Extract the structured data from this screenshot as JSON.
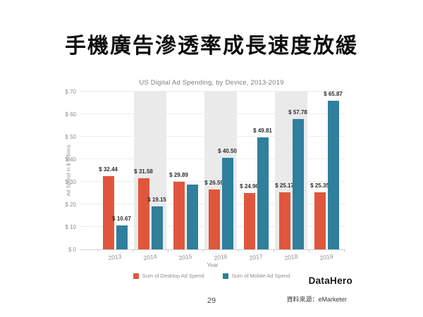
{
  "slide": {
    "title": "手機廣告滲透率成長速度放緩",
    "page_number": "29",
    "source_note": "資料來源：eMarketer",
    "logo_text": "DataHero"
  },
  "chart_data": {
    "type": "bar",
    "title": "US Digital Ad Spending, by Device, 2013-2019",
    "xlabel": "Year",
    "ylabel": "Ad Spend in $ Billions",
    "ylim": [
      0,
      70
    ],
    "yticks": [
      0,
      10,
      20,
      30,
      40,
      50,
      60,
      70
    ],
    "ytick_labels": [
      "$ 0",
      "$ 10",
      "$ 20",
      "$ 30",
      "$ 40",
      "$ 50",
      "$ 60",
      "$ 70"
    ],
    "categories": [
      "2013",
      "2014",
      "2015",
      "2016",
      "2017",
      "2018",
      "2019"
    ],
    "series": [
      {
        "name": "Sum of Desktop Ad Spend",
        "color": "#E0563C",
        "values": [
          32.44,
          31.58,
          29.89,
          26.59,
          24.96,
          25.17,
          25.35
        ],
        "labels": [
          "$ 32.44",
          "$ 31.58",
          "$ 29.89",
          "$ 26.59",
          "$ 24.96",
          "$ 25.17",
          "$ 25.35"
        ]
      },
      {
        "name": "Sum of Mobile Ad Spend",
        "color": "#2F7F9D",
        "values": [
          10.67,
          19.15,
          28.6,
          40.5,
          49.81,
          57.78,
          65.87
        ],
        "labels": [
          "$ 10.67",
          "$ 19.15",
          "",
          "$ 40.50",
          "$ 49.81",
          "$ 57.78",
          "$ 65.87"
        ]
      }
    ],
    "shaded_categories": [
      "2014",
      "2016",
      "2018"
    ],
    "shaded_band_color": "#EAEAEA",
    "grid": true,
    "legend_position": "bottom"
  }
}
